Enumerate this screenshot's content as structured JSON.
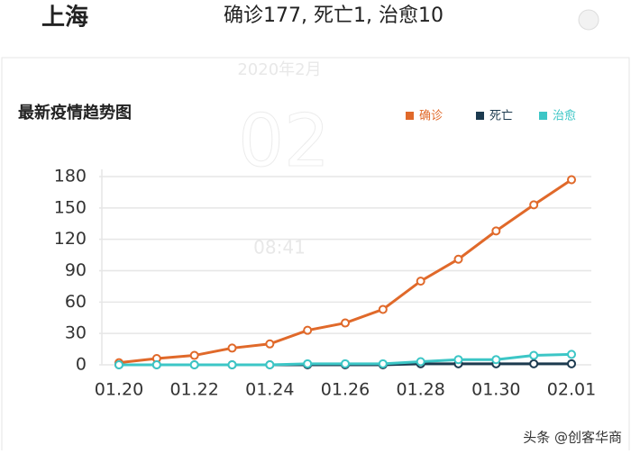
{
  "header": {
    "city": "上海",
    "summary": "确诊177, 死亡1, 治愈10"
  },
  "watermark": {
    "month": "2020年2月",
    "day": "02",
    "time": "08:41"
  },
  "footer": {
    "credit": "头条 @创客华商"
  },
  "chart_data": {
    "type": "line",
    "title": "最新疫情趋势图",
    "categories": [
      "01.20",
      null,
      "01.22",
      null,
      "01.24",
      null,
      "01.26",
      null,
      "01.28",
      null,
      "01.30",
      null,
      "02.01"
    ],
    "series": [
      {
        "name": "确诊",
        "color": "#e0692a",
        "values": [
          2,
          6,
          9,
          16,
          20,
          33,
          40,
          53,
          80,
          101,
          128,
          153,
          177
        ]
      },
      {
        "name": "死亡",
        "color": "#1c3a4f",
        "values": [
          0,
          0,
          0,
          0,
          0,
          0,
          0,
          0,
          1,
          1,
          1,
          1,
          1
        ]
      },
      {
        "name": "治愈",
        "color": "#3cc6c6",
        "values": [
          0,
          0,
          0,
          0,
          0,
          1,
          1,
          1,
          3,
          5,
          5,
          9,
          10
        ]
      }
    ],
    "ylim": [
      0,
      180
    ],
    "yticks": [
      0,
      30,
      60,
      90,
      120,
      150,
      180
    ],
    "grid": true,
    "legend": "top-right"
  }
}
